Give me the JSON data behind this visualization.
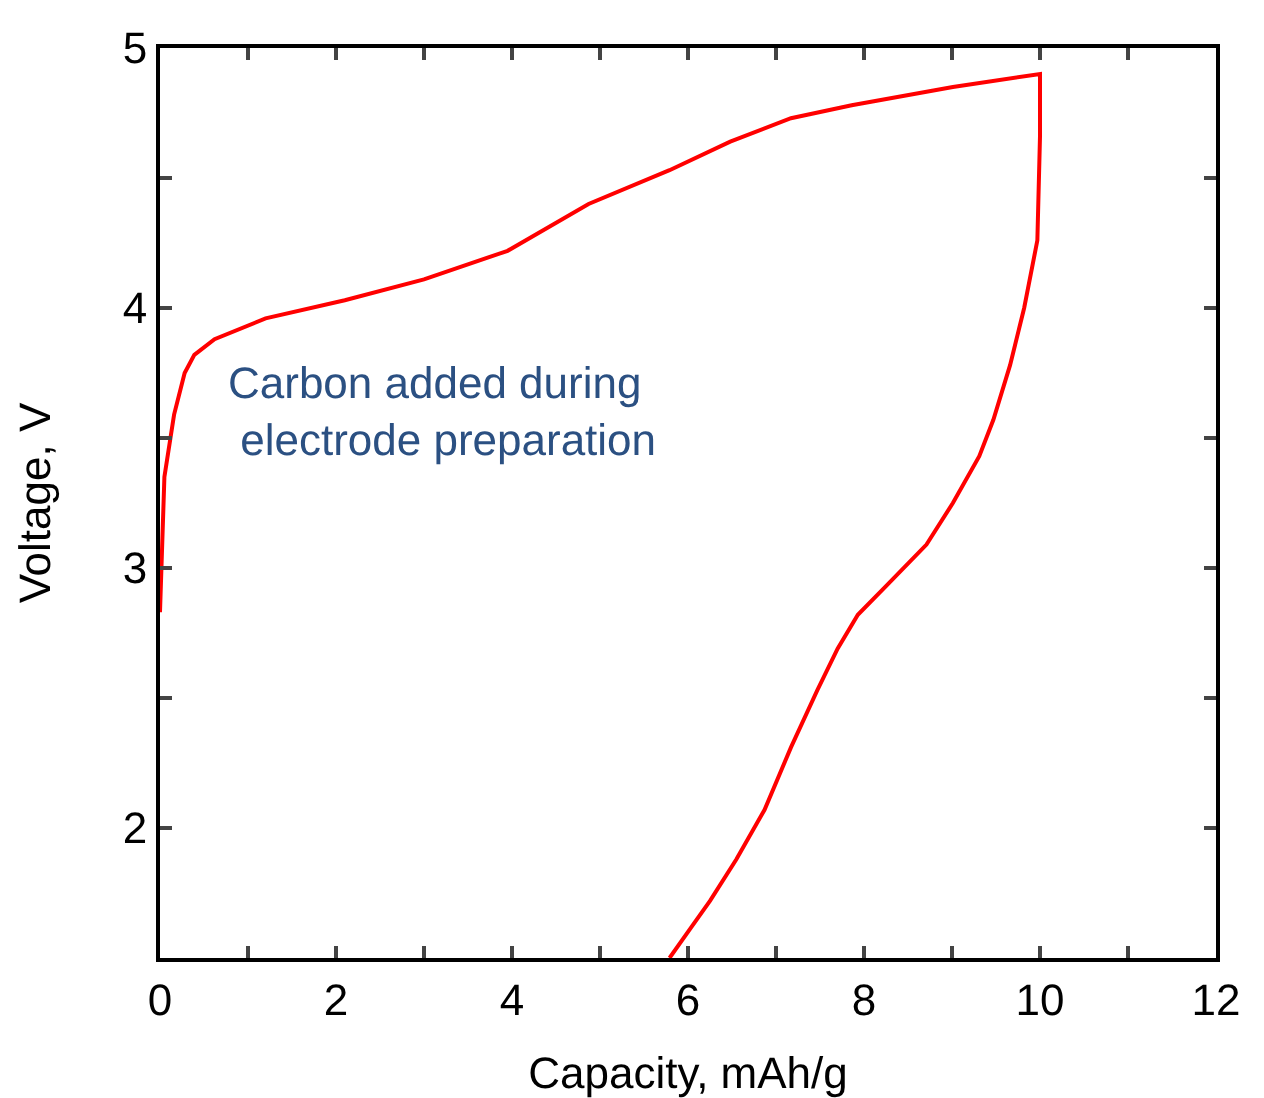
{
  "chart_data": {
    "type": "line",
    "xlabel": "Capacity, mAh/g",
    "ylabel": "Voltage, V",
    "annotations": [
      "Carbon added during\n electrode preparation"
    ],
    "xlim": [
      0,
      12
    ],
    "ylim": [
      1.5,
      5
    ],
    "xticks": [
      0,
      {
        "value": 1,
        "label": null
      },
      2,
      {
        "value": 3,
        "label": null
      },
      4,
      {
        "value": 5,
        "label": null
      },
      6,
      {
        "value": 7,
        "label": null
      },
      8,
      {
        "value": 9,
        "label": null
      },
      10,
      {
        "value": 11,
        "label": null
      },
      12
    ],
    "yticks": [
      {
        "value": 1.5,
        "label": null
      },
      2,
      {
        "value": 2.5,
        "label": null
      },
      3,
      {
        "value": 3.5,
        "label": null
      },
      4,
      {
        "value": 4.5,
        "label": null
      },
      5
    ],
    "grid": false,
    "marker": "none",
    "line_style": "solid",
    "series": [
      {
        "color": "#ff0000",
        "x": [
          0,
          0.05,
          0.16,
          0.28,
          0.39,
          0.62,
          1.2,
          2.1,
          3.0,
          3.95,
          4.87,
          5.79,
          6.48,
          7.17,
          7.86,
          9.01,
          10,
          10,
          9.97,
          9.82,
          9.66,
          9.47,
          9.31,
          9.01,
          8.71,
          8.25,
          7.93,
          7.7,
          7.47,
          7.17,
          6.87,
          6.55,
          6.25,
          6.02,
          5.79
        ],
        "values": [
          2.83,
          3.35,
          3.59,
          3.75,
          3.82,
          3.88,
          3.96,
          4.03,
          4.11,
          4.22,
          4.4,
          4.53,
          4.64,
          4.73,
          4.78,
          4.85,
          4.9,
          4.66,
          4.26,
          4.0,
          3.78,
          3.57,
          3.43,
          3.25,
          3.09,
          2.93,
          2.82,
          2.69,
          2.53,
          2.31,
          2.07,
          1.88,
          1.72,
          1.61,
          1.5
        ]
      }
    ]
  }
}
